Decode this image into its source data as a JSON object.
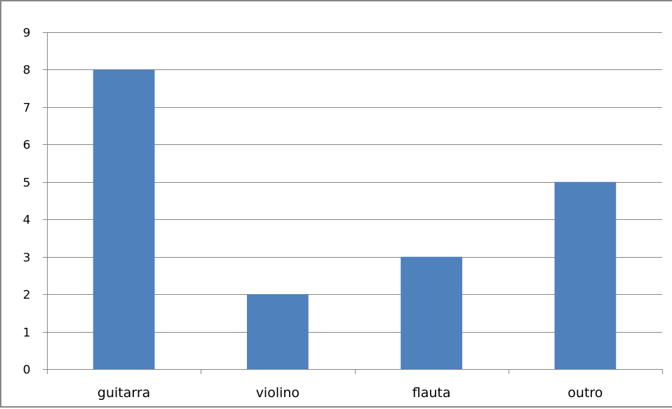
{
  "chart_data": {
    "type": "bar",
    "title": "",
    "xlabel": "",
    "ylabel": "",
    "categories": [
      "guitarra",
      "violino",
      "flauta",
      "outro"
    ],
    "values": [
      8,
      2,
      3,
      5
    ],
    "ylim": [
      0,
      9
    ],
    "y_ticks": [
      "0",
      "1",
      "2",
      "3",
      "4",
      "5",
      "6",
      "7",
      "8",
      "9"
    ],
    "grid": true,
    "legend": "none",
    "colors": {
      "bar": "#4F81BD",
      "grid": "#868686",
      "axis": "#868686",
      "frame": "#868686"
    }
  }
}
